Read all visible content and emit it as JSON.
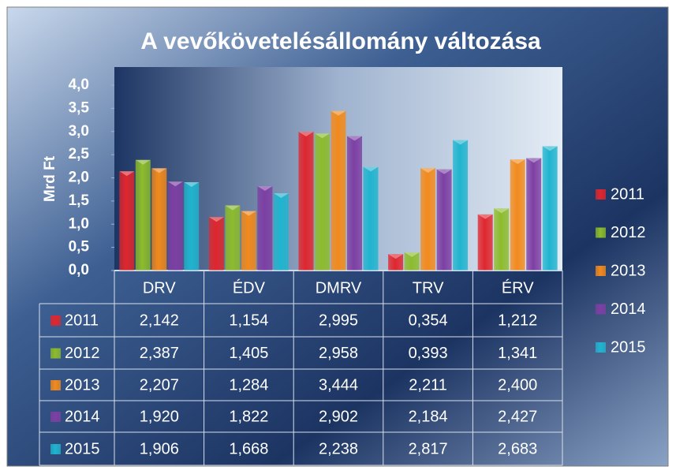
{
  "chart_data": {
    "type": "bar",
    "title": "A vevőkövetelésállomány változása",
    "y_label": "Mrd Ft",
    "categories": [
      "DRV",
      "ÉDV",
      "DMRV",
      "TRV",
      "ÉRV"
    ],
    "series": [
      {
        "name": "2011",
        "color": "#e0262e",
        "values": [
          2.142,
          1.154,
          2.995,
          0.354,
          1.212
        ],
        "value_labels": [
          "2,142",
          "1,154",
          "2,995",
          "0,354",
          "1,212"
        ]
      },
      {
        "name": "2012",
        "color": "#8cbc2c",
        "values": [
          2.387,
          1.405,
          2.958,
          0.393,
          1.341
        ],
        "value_labels": [
          "2,387",
          "1,405",
          "2,958",
          "0,393",
          "1,341"
        ]
      },
      {
        "name": "2013",
        "color": "#f28a1c",
        "values": [
          2.207,
          1.284,
          3.444,
          2.211,
          2.4
        ],
        "value_labels": [
          "2,207",
          "1,284",
          "3,444",
          "2,211",
          "2,400"
        ]
      },
      {
        "name": "2014",
        "color": "#7d3fa3",
        "values": [
          1.92,
          1.822,
          2.902,
          2.184,
          2.427
        ],
        "value_labels": [
          "1,920",
          "1,822",
          "2,902",
          "2,184",
          "2,427"
        ]
      },
      {
        "name": "2015",
        "color": "#20b4cf",
        "values": [
          1.906,
          1.668,
          2.238,
          2.817,
          2.683
        ],
        "value_labels": [
          "1,906",
          "1,668",
          "2,238",
          "2,817",
          "2,683"
        ]
      }
    ],
    "ylim": [
      0,
      4
    ],
    "yticks": [
      {
        "value": 0,
        "label": "0,0"
      },
      {
        "value": 0.5,
        "label": "0,5"
      },
      {
        "value": 1,
        "label": "1,0"
      },
      {
        "value": 1.5,
        "label": "1,5"
      },
      {
        "value": 2,
        "label": "2,0"
      },
      {
        "value": 2.5,
        "label": "2,5"
      },
      {
        "value": 3,
        "label": "3,0"
      },
      {
        "value": 3.5,
        "label": "3,5"
      },
      {
        "value": 4,
        "label": "4,0"
      }
    ],
    "legend": "right"
  }
}
